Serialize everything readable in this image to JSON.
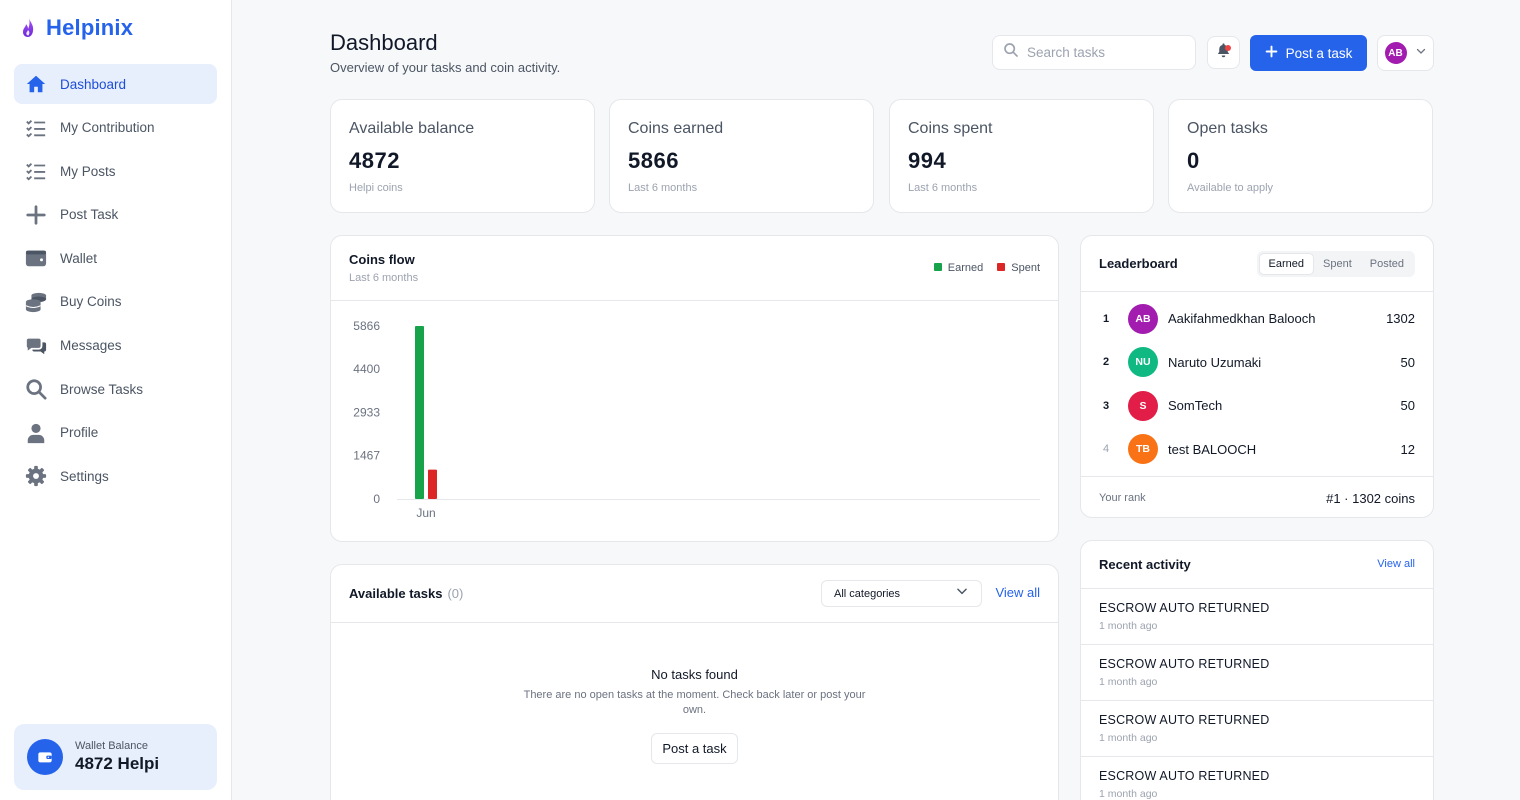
{
  "brand": {
    "name": "Helpinix"
  },
  "sidebar": {
    "items": [
      {
        "label": "Dashboard",
        "icon": "home-icon",
        "active": true
      },
      {
        "label": "My Contribution",
        "icon": "checklist-icon"
      },
      {
        "label": "My Posts",
        "icon": "checklist-icon"
      },
      {
        "label": "Post Task",
        "icon": "plus-icon"
      },
      {
        "label": "Wallet",
        "icon": "wallet-icon"
      },
      {
        "label": "Buy Coins",
        "icon": "coins-icon"
      },
      {
        "label": "Messages",
        "icon": "chat-icon"
      },
      {
        "label": "Browse Tasks",
        "icon": "search-icon"
      },
      {
        "label": "Profile",
        "icon": "user-icon"
      },
      {
        "label": "Settings",
        "icon": "gear-icon"
      }
    ],
    "wallet": {
      "label": "Wallet Balance",
      "value": "4872 Helpi"
    }
  },
  "header": {
    "title": "Dashboard",
    "subtitle": "Overview of your tasks and coin activity.",
    "search_placeholder": "Search tasks",
    "post_button": "Post a task",
    "avatar_initials": "AB"
  },
  "stats": [
    {
      "label": "Available balance",
      "value": "4872",
      "sub": "Helpi coins"
    },
    {
      "label": "Coins earned",
      "value": "5866",
      "sub": "Last 6 months"
    },
    {
      "label": "Coins spent",
      "value": "994",
      "sub": "Last 6 months"
    },
    {
      "label": "Open tasks",
      "value": "0",
      "sub": "Available to apply"
    }
  ],
  "coins_flow": {
    "title": "Coins flow",
    "subtitle": "Last 6 months",
    "legend": {
      "earned": "Earned",
      "spent": "Spent"
    }
  },
  "chart_data": {
    "type": "bar",
    "categories": [
      "Jun"
    ],
    "series": [
      {
        "name": "Earned",
        "values": [
          5866
        ],
        "color": "#16a34a"
      },
      {
        "name": "Spent",
        "values": [
          994
        ],
        "color": "#dc2626"
      }
    ],
    "yticks": [
      "0",
      "1467",
      "2933",
      "4400",
      "5866"
    ],
    "ylim": [
      0,
      5866
    ],
    "grid": false,
    "legend_position": "top-right"
  },
  "available_tasks": {
    "title": "Available tasks",
    "count": "(0)",
    "category_select": "All categories",
    "view_all": "View all",
    "empty_title": "No tasks found",
    "empty_text": "There are no open tasks at the moment. Check back later or post your own.",
    "empty_button": "Post a task"
  },
  "leaderboard": {
    "title": "Leaderboard",
    "tabs": [
      {
        "label": "Earned",
        "active": true
      },
      {
        "label": "Spent"
      },
      {
        "label": "Posted"
      }
    ],
    "rows": [
      {
        "rank": "1",
        "initials": "AB",
        "name": "Aakifahmedkhan Balooch",
        "score": "1302",
        "color": "#a21caf"
      },
      {
        "rank": "2",
        "initials": "NU",
        "name": "Naruto Uzumaki",
        "score": "50",
        "color": "#10b981"
      },
      {
        "rank": "3",
        "initials": "S",
        "name": "SomTech",
        "score": "50",
        "color": "#e11d48"
      },
      {
        "rank": "4",
        "initials": "TB",
        "name": "test BALOOCH",
        "score": "12",
        "color": "#f97316"
      }
    ],
    "your_rank_label": "Your rank",
    "your_rank_value": "#1 · 1302 coins"
  },
  "recent_activity": {
    "title": "Recent activity",
    "view_all": "View all",
    "items": [
      {
        "title": "ESCROW AUTO RETURNED",
        "time": "1 month ago"
      },
      {
        "title": "ESCROW AUTO RETURNED",
        "time": "1 month ago"
      },
      {
        "title": "ESCROW AUTO RETURNED",
        "time": "1 month ago"
      },
      {
        "title": "ESCROW AUTO RETURNED",
        "time": "1 month ago"
      }
    ]
  }
}
